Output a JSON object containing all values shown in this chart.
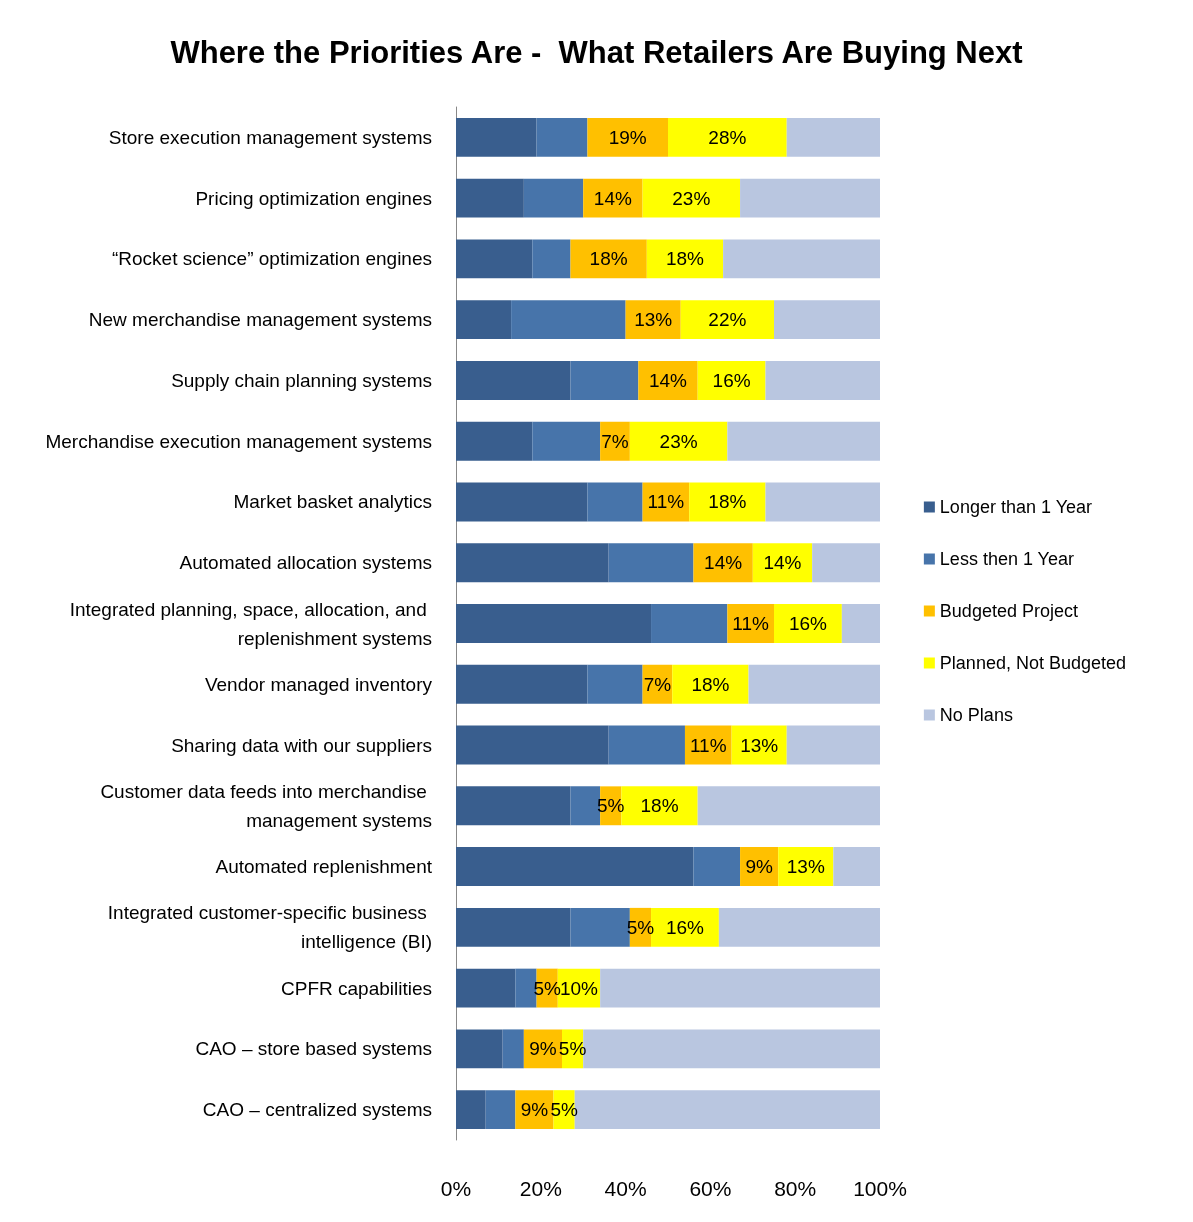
{
  "chart_data": {
    "type": "bar",
    "orientation": "horizontal",
    "stacked": true,
    "title": "Where the Priorities Are -  What Retailers Are Buying Next",
    "categories": [
      "Store execution management systems",
      "Pricing optimization engines",
      "“Rocket science” optimization engines",
      "New merchandise management systems",
      "Supply chain planning systems",
      "Merchandise execution management systems",
      "Market basket analytics",
      "Automated allocation systems",
      "Integrated planning, space, allocation, and replenishment systems",
      "Vendor managed inventory",
      "Sharing data with our suppliers",
      "Customer data feeds into merchandise management systems",
      "Automated replenishment",
      "Integrated customer-specific business intelligence (BI)",
      "CPFR capabilities",
      "CAO – store based systems",
      "CAO – centralized systems"
    ],
    "series": [
      {
        "name": "Longer than 1 Year",
        "color": "#395e8e",
        "values": [
          19,
          16,
          18,
          13,
          27,
          18,
          31,
          36,
          46,
          31,
          36,
          27,
          56,
          27,
          14,
          11,
          7
        ]
      },
      {
        "name": "Less then 1 Year",
        "color": "#4774aa",
        "values": [
          12,
          14,
          9,
          27,
          16,
          16,
          13,
          20,
          18,
          13,
          18,
          7,
          11,
          14,
          5,
          5,
          7
        ]
      },
      {
        "name": "Budgeted Project",
        "color": "#ffc000",
        "values": [
          19,
          14,
          18,
          13,
          14,
          7,
          11,
          14,
          11,
          7,
          11,
          5,
          9,
          5,
          5,
          9,
          9
        ],
        "value_labels": [
          "19%",
          "14%",
          "18%",
          "13%",
          "14%",
          "7%",
          "11%",
          "14%",
          "11%",
          "7%",
          "11%",
          "5%",
          "9%",
          "5%",
          "5%",
          "9%",
          "9%"
        ]
      },
      {
        "name": "Planned, Not Budgeted",
        "color": "#ffff00",
        "values": [
          28,
          23,
          18,
          22,
          16,
          23,
          18,
          14,
          16,
          18,
          13,
          18,
          13,
          16,
          10,
          5,
          5
        ],
        "value_labels": [
          "28%",
          "23%",
          "18%",
          "22%",
          "16%",
          "23%",
          "18%",
          "14%",
          "16%",
          "18%",
          "13%",
          "18%",
          "13%",
          "16%",
          "10%",
          "5%",
          "5%"
        ]
      },
      {
        "name": "No Plans",
        "color": "#b9c6e0",
        "values": [
          22,
          33,
          37,
          25,
          27,
          36,
          27,
          16,
          9,
          31,
          22,
          43,
          11,
          38,
          66,
          70,
          72
        ]
      }
    ],
    "xlim": [
      0,
      100
    ],
    "xticks": [
      {
        "value": 0,
        "label": "0%"
      },
      {
        "value": 20,
        "label": "20%"
      },
      {
        "value": 40,
        "label": "40%"
      },
      {
        "value": 60,
        "label": "60%"
      },
      {
        "value": 80,
        "label": "80%"
      },
      {
        "value": 100,
        "label": "100%"
      }
    ],
    "grid": false,
    "legend": "right"
  }
}
